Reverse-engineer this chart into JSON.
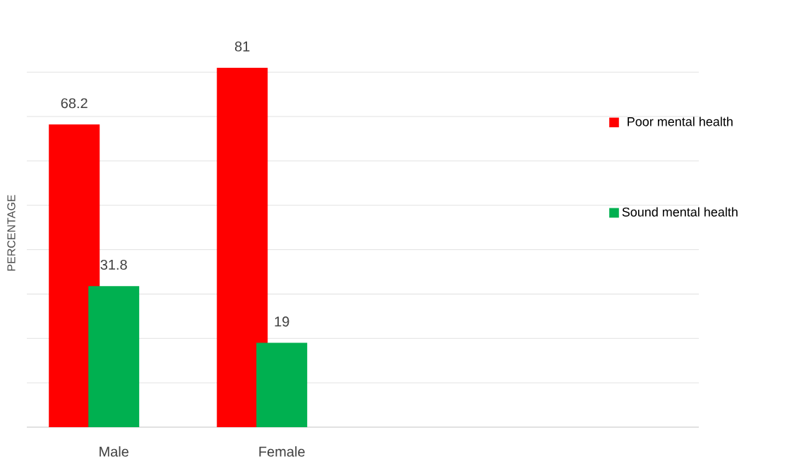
{
  "chart_data": {
    "type": "bar",
    "ylabel": "PERCENTAGE",
    "categories": [
      "Male",
      "Female"
    ],
    "series": [
      {
        "name": "Poor mental health",
        "color": "#ff0000",
        "values": [
          68.2,
          81
        ]
      },
      {
        "name": "Sound mental health",
        "color": "#00b050",
        "values": [
          31.8,
          19
        ]
      }
    ],
    "tick_labels": "x",
    "grid": "y",
    "legend": "right",
    "data_labels": true
  }
}
